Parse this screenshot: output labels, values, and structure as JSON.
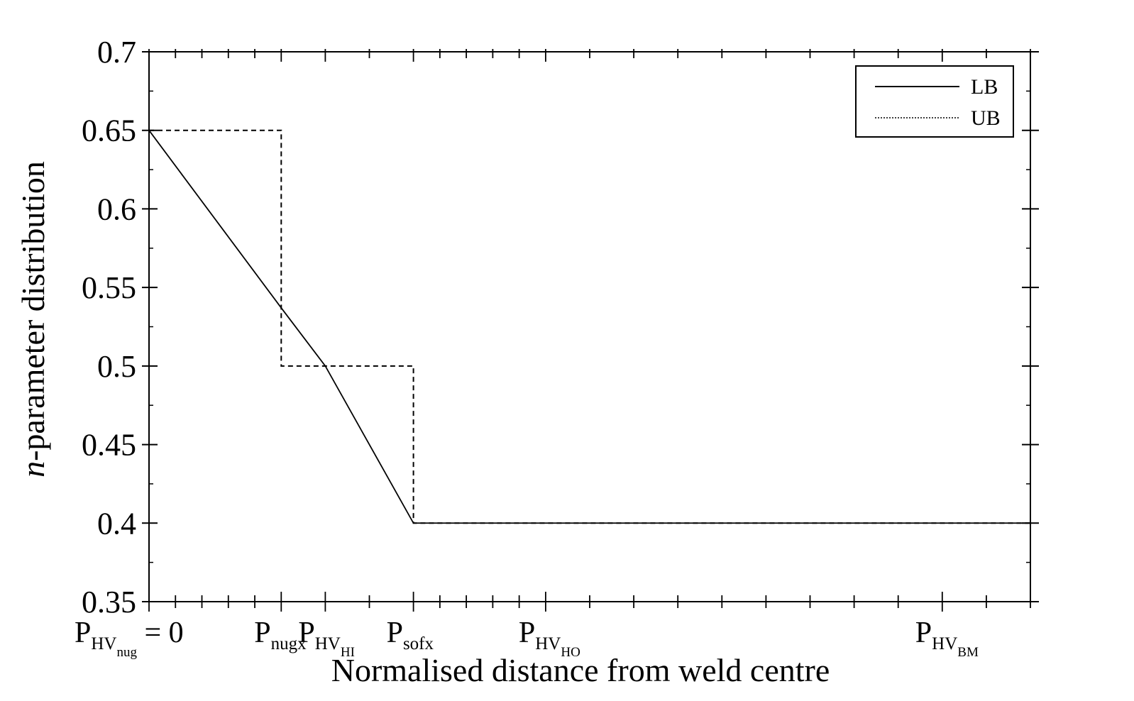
{
  "chart_data": {
    "type": "line",
    "xlabel": "Normalised distance from weld centre",
    "ylabel_italic": "n",
    "ylabel_rest": "-parameter distribution",
    "ylim": [
      0.35,
      0.7
    ],
    "xlim": [
      0,
      1
    ],
    "y_ticks": [
      "0.35",
      "0.4",
      "0.45",
      "0.5",
      "0.55",
      "0.6",
      "0.65",
      "0.7"
    ],
    "y_tick_values": [
      0.35,
      0.4,
      0.45,
      0.5,
      0.55,
      0.6,
      0.65,
      0.7
    ],
    "x_minor_ticks": [
      0.0,
      0.03,
      0.06,
      0.09,
      0.12,
      0.15,
      0.2,
      0.25,
      0.3,
      0.33,
      0.36,
      0.39,
      0.42,
      0.45,
      0.5,
      0.55,
      0.6,
      0.65,
      0.7,
      0.75,
      0.8,
      0.85,
      0.9,
      0.95,
      1.0
    ],
    "x_tick_labels": [
      {
        "x": 0.0,
        "main": "P",
        "sub": "HV",
        "subsub": "nug",
        "tail": "= 0"
      },
      {
        "x": 0.15,
        "main": "P",
        "sub": "nug",
        "subsub": "",
        "tail_sub": "x"
      },
      {
        "x": 0.2,
        "main": "P",
        "sub": "HV",
        "subsub": "HI",
        "tail": ""
      },
      {
        "x": 0.3,
        "main": "P",
        "sub": "sof",
        "subsub": "",
        "tail_sub": "x"
      },
      {
        "x": 0.45,
        "main": "P",
        "sub": "HV",
        "subsub": "HO",
        "tail": ""
      },
      {
        "x": 0.9,
        "main": "P",
        "sub": "HV",
        "subsub": "BM",
        "tail": ""
      }
    ],
    "series": [
      {
        "name": "LB",
        "style": "solid",
        "x": [
          0.0,
          0.15,
          0.2,
          0.3,
          1.0
        ],
        "y": [
          0.65,
          0.537,
          0.5,
          0.4,
          0.4
        ]
      },
      {
        "name": "UB",
        "style": "dotted",
        "x": [
          0.0,
          0.15,
          0.15,
          0.3,
          0.3,
          1.0
        ],
        "y": [
          0.65,
          0.65,
          0.5,
          0.5,
          0.4,
          0.4
        ]
      }
    ],
    "legend_position": "top-right",
    "grid": false
  }
}
